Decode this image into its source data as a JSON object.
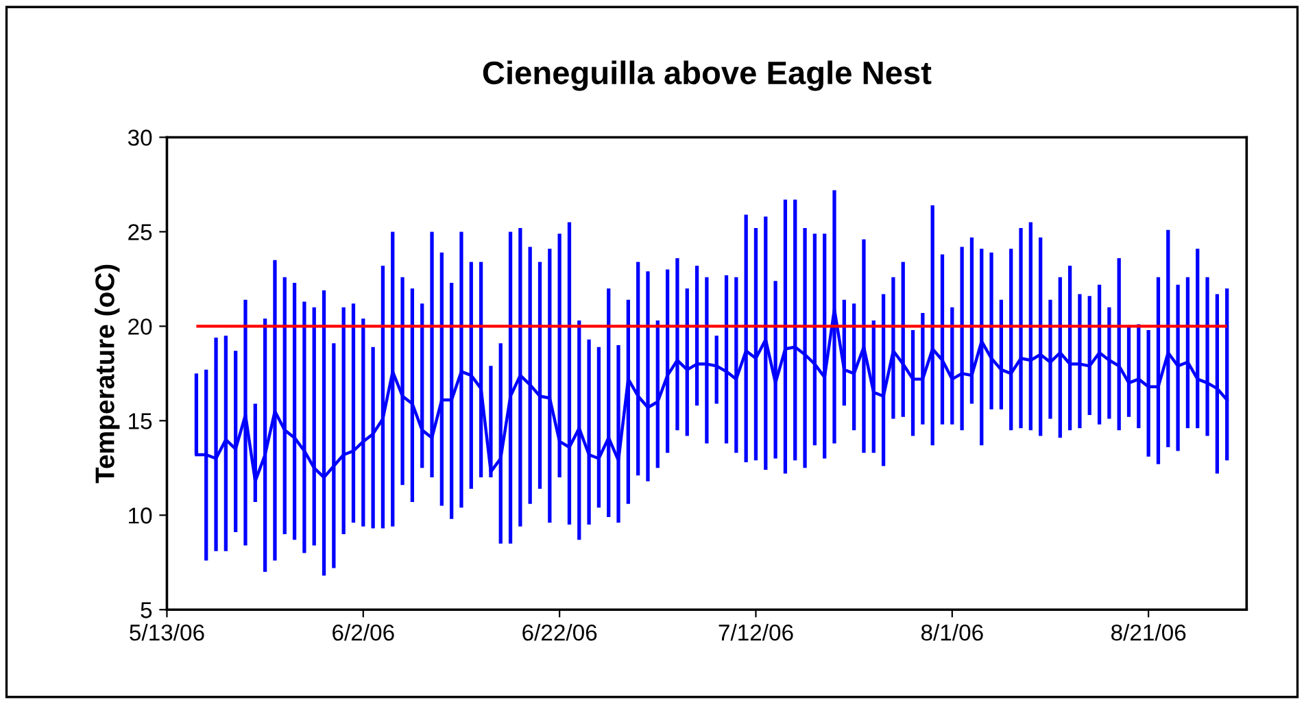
{
  "chart_data": {
    "type": "line",
    "title": "Cieneguilla above Eagle Nest",
    "ylabel": "Temperature (oC)",
    "x": [
      "2006-05-16",
      "2006-05-17",
      "2006-05-18",
      "2006-05-19",
      "2006-05-20",
      "2006-05-21",
      "2006-05-22",
      "2006-05-23",
      "2006-05-24",
      "2006-05-25",
      "2006-05-26",
      "2006-05-27",
      "2006-05-28",
      "2006-05-29",
      "2006-05-30",
      "2006-05-31",
      "2006-06-01",
      "2006-06-02",
      "2006-06-03",
      "2006-06-04",
      "2006-06-05",
      "2006-06-06",
      "2006-06-07",
      "2006-06-08",
      "2006-06-09",
      "2006-06-10",
      "2006-06-11",
      "2006-06-12",
      "2006-06-13",
      "2006-06-14",
      "2006-06-15",
      "2006-06-16",
      "2006-06-17",
      "2006-06-18",
      "2006-06-19",
      "2006-06-20",
      "2006-06-21",
      "2006-06-22",
      "2006-06-23",
      "2006-06-24",
      "2006-06-25",
      "2006-06-26",
      "2006-06-27",
      "2006-06-28",
      "2006-06-29",
      "2006-06-30",
      "2006-07-01",
      "2006-07-02",
      "2006-07-03",
      "2006-07-04",
      "2006-07-05",
      "2006-07-06",
      "2006-07-07",
      "2006-07-08",
      "2006-07-09",
      "2006-07-10",
      "2006-07-11",
      "2006-07-12",
      "2006-07-13",
      "2006-07-14",
      "2006-07-15",
      "2006-07-16",
      "2006-07-17",
      "2006-07-18",
      "2006-07-19",
      "2006-07-20",
      "2006-07-21",
      "2006-07-22",
      "2006-07-23",
      "2006-07-24",
      "2006-07-25",
      "2006-07-26",
      "2006-07-27",
      "2006-07-28",
      "2006-07-29",
      "2006-07-30",
      "2006-07-31",
      "2006-08-01",
      "2006-08-02",
      "2006-08-03",
      "2006-08-04",
      "2006-08-05",
      "2006-08-06",
      "2006-08-07",
      "2006-08-08",
      "2006-08-09",
      "2006-08-10",
      "2006-08-11",
      "2006-08-12",
      "2006-08-13",
      "2006-08-14",
      "2006-08-15",
      "2006-08-16",
      "2006-08-17",
      "2006-08-18",
      "2006-08-19",
      "2006-08-20",
      "2006-08-21",
      "2006-08-22",
      "2006-08-23",
      "2006-08-24",
      "2006-08-25",
      "2006-08-26",
      "2006-08-27",
      "2006-08-28",
      "2006-08-29"
    ],
    "series": [
      {
        "color": "#0000ff",
        "values": [
          13.2,
          13.2,
          13.0,
          14.0,
          13.5,
          15.3,
          11.8,
          13.2,
          15.5,
          14.5,
          14.1,
          13.4,
          12.5,
          12.0,
          12.6,
          13.2,
          13.4,
          13.9,
          14.3,
          15.1,
          17.6,
          16.3,
          15.9,
          14.5,
          14.1,
          16.1,
          16.1,
          17.6,
          17.4,
          16.7,
          12.3,
          13.0,
          16.3,
          17.4,
          16.9,
          16.3,
          16.2,
          13.9,
          13.6,
          14.6,
          13.2,
          13.0,
          14.1,
          12.9,
          17.2,
          16.3,
          15.7,
          16.0,
          17.4,
          18.2,
          17.7,
          18.0,
          18.0,
          17.9,
          17.6,
          17.2,
          18.7,
          18.3,
          19.3,
          17.0,
          18.8,
          18.9,
          18.5,
          18.0,
          17.3,
          20.9,
          17.7,
          17.5,
          18.9,
          16.5,
          16.3,
          18.7,
          18.0,
          17.2,
          17.2,
          18.8,
          18.2,
          17.2,
          17.5,
          17.4,
          19.2,
          18.3,
          17.7,
          17.5,
          18.3,
          18.2,
          18.5,
          18.1,
          18.6,
          18.0,
          18.0,
          17.9,
          18.6,
          18.2,
          17.9,
          17.0,
          17.2,
          16.8,
          16.8,
          18.6,
          17.9,
          18.1,
          17.2,
          17.0,
          16.7,
          16.1
        ],
        "errors": [
          [
            13.2,
            17.5
          ],
          [
            7.6,
            17.7
          ],
          [
            8.1,
            19.4
          ],
          [
            8.1,
            19.5
          ],
          [
            9.1,
            18.7
          ],
          [
            8.4,
            21.4
          ],
          [
            10.7,
            15.9
          ],
          [
            7.0,
            20.4
          ],
          [
            7.6,
            23.5
          ],
          [
            9.0,
            22.6
          ],
          [
            8.7,
            22.3
          ],
          [
            8.0,
            21.3
          ],
          [
            8.4,
            21.0
          ],
          [
            6.8,
            21.9
          ],
          [
            7.2,
            19.1
          ],
          [
            9.0,
            21.0
          ],
          [
            9.6,
            21.2
          ],
          [
            9.4,
            20.4
          ],
          [
            9.3,
            18.9
          ],
          [
            9.3,
            23.2
          ],
          [
            9.4,
            25.0
          ],
          [
            11.6,
            22.6
          ],
          [
            10.7,
            22.0
          ],
          [
            12.5,
            21.2
          ],
          [
            12.0,
            25.0
          ],
          [
            10.5,
            23.9
          ],
          [
            9.8,
            22.3
          ],
          [
            10.4,
            25.0
          ],
          [
            11.4,
            23.4
          ],
          [
            12.0,
            23.4
          ],
          [
            12.0,
            17.9
          ],
          [
            8.5,
            19.1
          ],
          [
            8.5,
            25.0
          ],
          [
            9.4,
            25.2
          ],
          [
            10.6,
            24.2
          ],
          [
            11.4,
            23.4
          ],
          [
            9.6,
            24.1
          ],
          [
            12.0,
            24.9
          ],
          [
            9.5,
            25.5
          ],
          [
            8.7,
            20.3
          ],
          [
            9.5,
            19.3
          ],
          [
            10.4,
            18.9
          ],
          [
            9.9,
            22.0
          ],
          [
            9.6,
            19.0
          ],
          [
            10.6,
            21.4
          ],
          [
            12.1,
            23.4
          ],
          [
            11.8,
            22.9
          ],
          [
            12.5,
            20.3
          ],
          [
            13.3,
            23.0
          ],
          [
            14.5,
            23.6
          ],
          [
            14.2,
            22.0
          ],
          [
            15.8,
            23.2
          ],
          [
            13.8,
            22.6
          ],
          [
            15.9,
            19.5
          ],
          [
            13.8,
            22.7
          ],
          [
            13.3,
            22.6
          ],
          [
            12.8,
            25.9
          ],
          [
            12.9,
            25.2
          ],
          [
            12.4,
            25.8
          ],
          [
            13.0,
            22.4
          ],
          [
            12.2,
            26.7
          ],
          [
            12.9,
            26.7
          ],
          [
            12.5,
            25.2
          ],
          [
            13.7,
            24.9
          ],
          [
            13.0,
            24.9
          ],
          [
            13.8,
            27.2
          ],
          [
            15.8,
            21.4
          ],
          [
            14.5,
            21.2
          ],
          [
            13.3,
            24.6
          ],
          [
            13.3,
            20.3
          ],
          [
            12.6,
            21.7
          ],
          [
            15.1,
            22.6
          ],
          [
            15.2,
            23.4
          ],
          [
            14.2,
            19.8
          ],
          [
            14.8,
            20.7
          ],
          [
            13.7,
            26.4
          ],
          [
            14.8,
            23.8
          ],
          [
            14.8,
            21.0
          ],
          [
            14.5,
            24.2
          ],
          [
            15.9,
            24.7
          ],
          [
            13.7,
            24.1
          ],
          [
            15.6,
            23.9
          ],
          [
            15.6,
            21.4
          ],
          [
            14.5,
            24.1
          ],
          [
            14.6,
            25.2
          ],
          [
            14.5,
            25.5
          ],
          [
            14.2,
            24.7
          ],
          [
            15.1,
            21.4
          ],
          [
            14.1,
            22.6
          ],
          [
            14.5,
            23.2
          ],
          [
            14.6,
            21.7
          ],
          [
            15.3,
            21.6
          ],
          [
            14.8,
            22.2
          ],
          [
            15.1,
            21.0
          ],
          [
            14.5,
            23.6
          ],
          [
            15.2,
            20.0
          ],
          [
            14.6,
            20.1
          ],
          [
            13.1,
            19.8
          ],
          [
            12.7,
            22.6
          ],
          [
            13.6,
            25.1
          ],
          [
            13.4,
            22.2
          ],
          [
            14.6,
            22.6
          ],
          [
            14.6,
            24.1
          ],
          [
            14.2,
            22.6
          ],
          [
            12.2,
            21.7
          ],
          [
            12.9,
            22.0
          ]
        ]
      }
    ],
    "ref_lines": [
      {
        "axis": "y",
        "value": 20,
        "color": "#ff0000"
      }
    ],
    "xlim": [
      "2006-05-13",
      "2006-08-31"
    ],
    "xticks": [
      {
        "value": "2006-05-13",
        "label": "5/13/06"
      },
      {
        "value": "2006-06-02",
        "label": "6/2/06"
      },
      {
        "value": "2006-06-22",
        "label": "6/22/06"
      },
      {
        "value": "2006-07-12",
        "label": "7/12/06"
      },
      {
        "value": "2006-08-01",
        "label": "8/1/06"
      },
      {
        "value": "2006-08-21",
        "label": "8/21/06"
      }
    ],
    "ylim": [
      5,
      30
    ],
    "yticks": [
      5,
      10,
      15,
      20,
      25,
      30
    ],
    "grid": false,
    "legend": false,
    "marker": "none",
    "line_style": "solid"
  }
}
